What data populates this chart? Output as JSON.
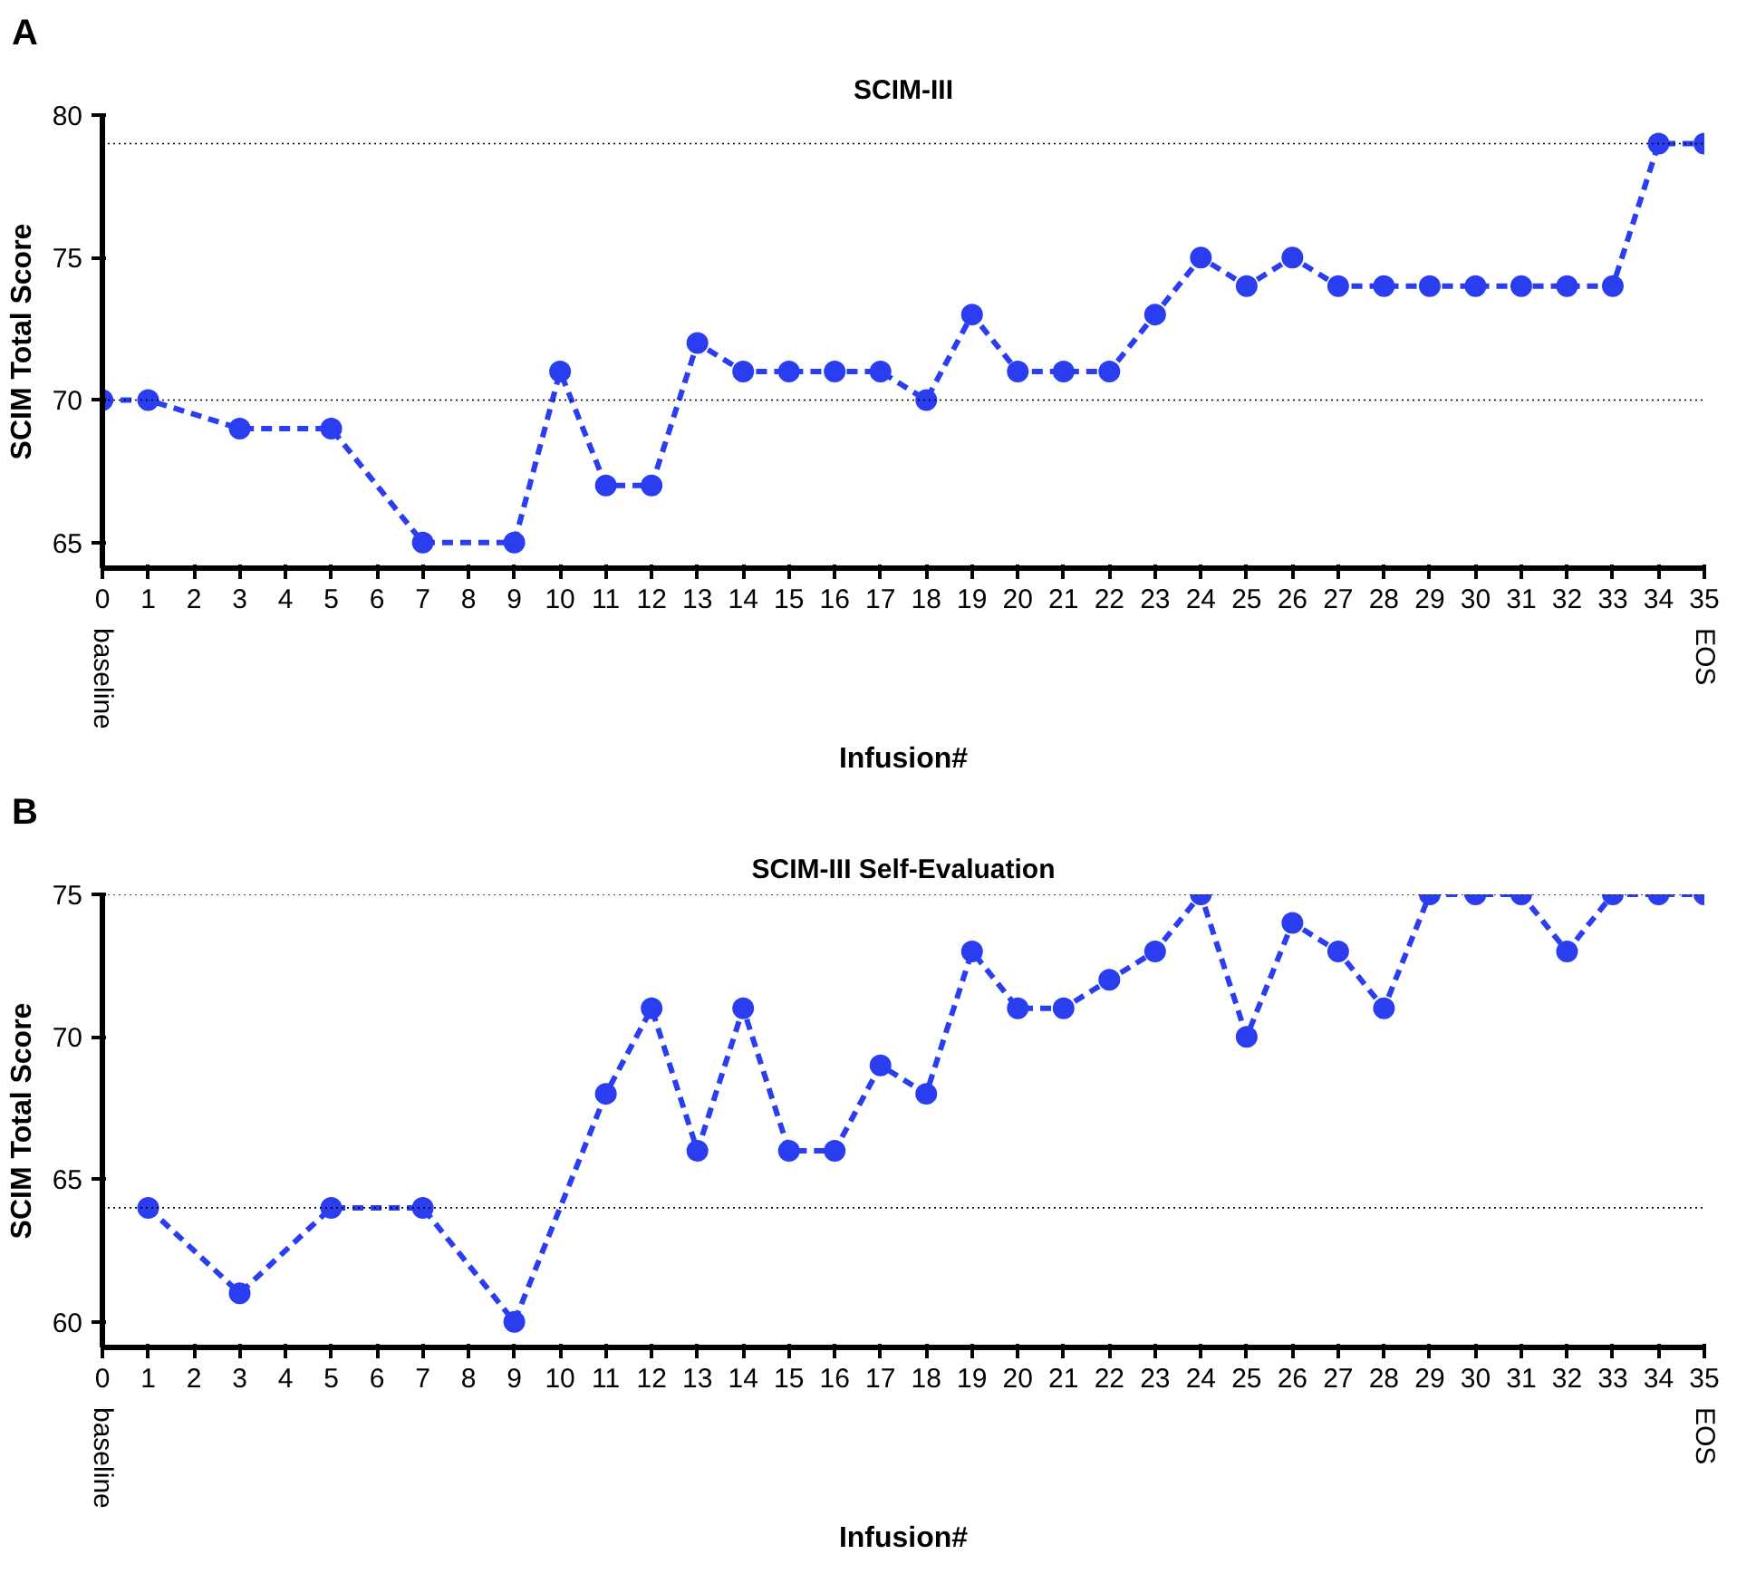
{
  "chart_data": [
    {
      "type": "line",
      "title": "SCIM-III",
      "annotations": [
        "A",
        "baseline",
        "EOS"
      ],
      "xlabel": "Infusion#",
      "ylabel": "SCIM Total Score",
      "series": [
        {
          "color": "#2a3ef0",
          "x": [
            0,
            1,
            3,
            5,
            7,
            9,
            10,
            11,
            12,
            13,
            14,
            15,
            16,
            17,
            18,
            19,
            20,
            21,
            22,
            23,
            24,
            25,
            26,
            27,
            28,
            29,
            30,
            31,
            32,
            33,
            34,
            35
          ],
          "values": [
            70,
            70,
            69,
            69,
            65,
            65,
            71,
            67,
            67,
            72,
            71,
            71,
            71,
            71,
            70,
            73,
            71,
            71,
            71,
            73,
            75,
            74,
            75,
            74,
            74,
            74,
            74,
            74,
            74,
            74,
            79,
            79
          ]
        }
      ],
      "xlim": [
        0,
        35
      ],
      "xticks": [
        0,
        1,
        2,
        3,
        4,
        5,
        6,
        7,
        8,
        9,
        10,
        11,
        12,
        13,
        14,
        15,
        16,
        17,
        18,
        19,
        20,
        21,
        22,
        23,
        24,
        25,
        26,
        27,
        28,
        29,
        30,
        31,
        32,
        33,
        34,
        35
      ],
      "ylim": [
        64.1,
        80
      ],
      "yticks": [
        65,
        70,
        75,
        80
      ],
      "marker": "circle",
      "line_style": "dashed",
      "grid": false,
      "ref_lines": [
        {
          "axis": "y",
          "value": 79,
          "color": "#000000",
          "line_style": "dotted"
        },
        {
          "axis": "y",
          "value": 70,
          "color": "#000000",
          "line_style": "dotted"
        }
      ]
    },
    {
      "type": "line",
      "title": "SCIM-III Self-Evaluation",
      "annotations": [
        "B",
        "baseline",
        "EOS"
      ],
      "xlabel": "Infusion#",
      "ylabel": "SCIM Total Score",
      "series": [
        {
          "color": "#2a3ef0",
          "x": [
            1,
            3,
            5,
            7,
            9,
            11,
            12,
            13,
            14,
            15,
            16,
            17,
            18,
            19,
            20,
            21,
            22,
            23,
            24,
            25,
            26,
            27,
            28,
            29,
            30,
            31,
            32,
            33,
            34,
            35
          ],
          "values": [
            64,
            61,
            64,
            64,
            60,
            68,
            71,
            66,
            71,
            66,
            66,
            69,
            68,
            73,
            71,
            71,
            72,
            73,
            75,
            70,
            74,
            73,
            71,
            75,
            75,
            75,
            73,
            75,
            75,
            75
          ]
        }
      ],
      "xlim": [
        0,
        35
      ],
      "xticks": [
        0,
        1,
        2,
        3,
        4,
        5,
        6,
        7,
        8,
        9,
        10,
        11,
        12,
        13,
        14,
        15,
        16,
        17,
        18,
        19,
        20,
        21,
        22,
        23,
        24,
        25,
        26,
        27,
        28,
        29,
        30,
        31,
        32,
        33,
        34,
        35
      ],
      "ylim": [
        59.1,
        75
      ],
      "yticks": [
        60,
        65,
        70,
        75
      ],
      "marker": "circle",
      "line_style": "dashed",
      "grid": false,
      "ref_lines": [
        {
          "axis": "y",
          "value": 75,
          "color": "#000000",
          "line_style": "dotted"
        },
        {
          "axis": "y",
          "value": 64,
          "color": "#000000",
          "line_style": "dotted"
        }
      ]
    }
  ]
}
